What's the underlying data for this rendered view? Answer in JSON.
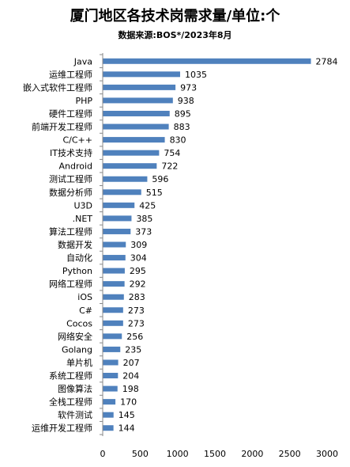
{
  "chart_data": {
    "type": "bar",
    "orientation": "horizontal",
    "title": "厦门地区各技术岗需求量/单位:个",
    "subtitle": "数据来源:BOS*/2023年8月",
    "categories": [
      "Java",
      "运维工程师",
      "嵌入式软件工程师",
      "PHP",
      "硬件工程师",
      "前端开发工程师",
      "C/C++",
      "IT技术支持",
      "Android",
      "测试工程师",
      "数据分析师",
      "U3D",
      ".NET",
      "算法工程师",
      "数据开发",
      "自动化",
      "Python",
      "网络工程师",
      "iOS",
      "C#",
      "Cocos",
      "网络安全",
      "Golang",
      "单片机",
      "系统工程师",
      "图像算法",
      "全栈工程师",
      "软件测试",
      "运维开发工程师"
    ],
    "values": [
      2784,
      1035,
      973,
      938,
      895,
      883,
      830,
      754,
      722,
      596,
      515,
      425,
      385,
      373,
      309,
      304,
      295,
      292,
      283,
      273,
      273,
      256,
      235,
      207,
      204,
      198,
      170,
      145,
      144
    ],
    "xlim": [
      0,
      3000
    ],
    "xticks": [
      0,
      500,
      1000,
      1500,
      2000,
      2500,
      3000
    ],
    "bar_color": "#4f81bd",
    "axis_color": "#888888"
  }
}
